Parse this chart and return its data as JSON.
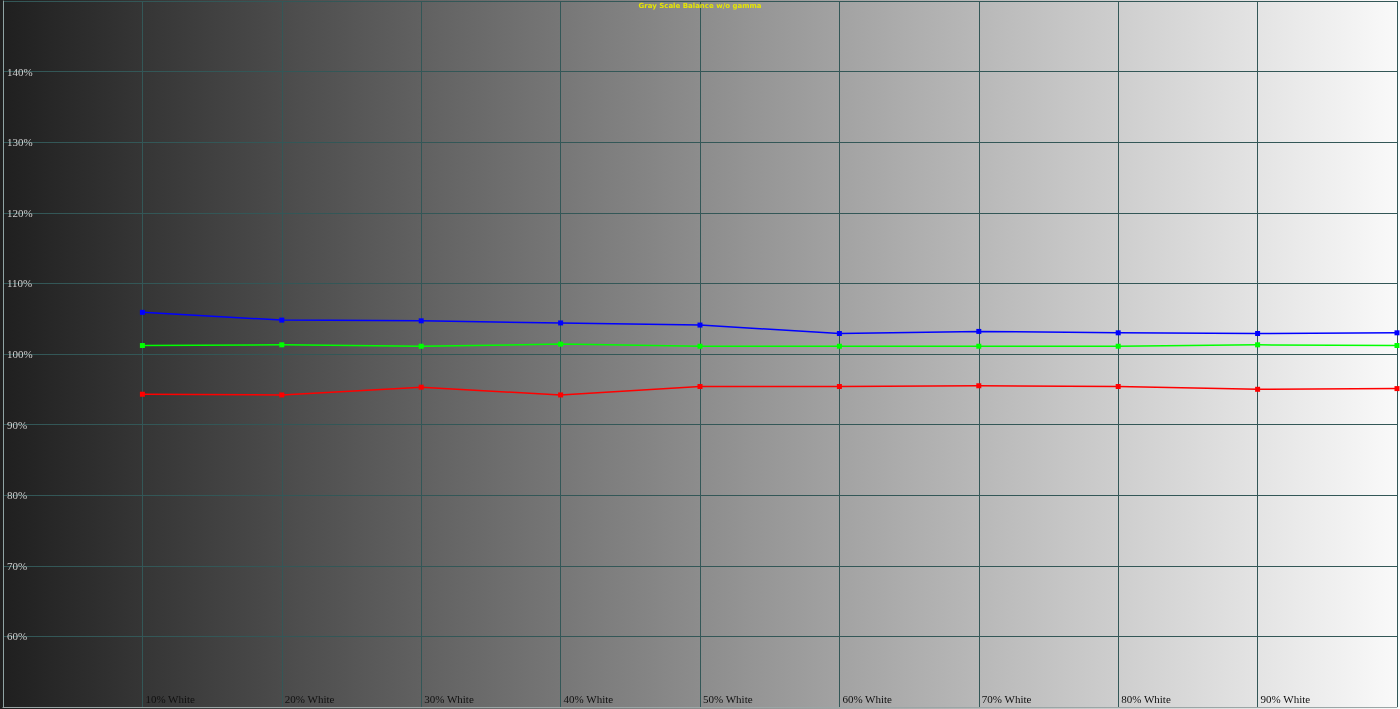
{
  "chart_data": {
    "type": "line",
    "title": "Gray Scale Balance w/o gamma",
    "categories": [
      "10% White",
      "20% White",
      "30% White",
      "40% White",
      "50% White",
      "60% White",
      "70% White",
      "80% White",
      "90% White",
      null
    ],
    "series": [
      {
        "color": "#0000ff",
        "values": [
          105.9,
          104.8,
          104.7,
          104.4,
          104.1,
          102.9,
          103.2,
          103.0,
          102.9,
          103.0
        ]
      },
      {
        "color": "#00ff00",
        "values": [
          101.2,
          101.3,
          101.1,
          101.4,
          101.1,
          101.1,
          101.1,
          101.1,
          101.3,
          101.2
        ]
      },
      {
        "color": "#ff0000",
        "values": [
          94.3,
          94.2,
          95.3,
          94.2,
          95.4,
          95.4,
          95.5,
          95.4,
          95.0,
          95.1
        ]
      }
    ],
    "ylim": [
      50,
      150
    ],
    "yticks": [
      {
        "value": 60,
        "label": "60%"
      },
      {
        "value": 70,
        "label": "70%"
      },
      {
        "value": 80,
        "label": "80%"
      },
      {
        "value": 90,
        "label": "90%"
      },
      {
        "value": 100,
        "label": "100%"
      },
      {
        "value": 110,
        "label": "110%"
      },
      {
        "value": 120,
        "label": "120%"
      },
      {
        "value": 130,
        "label": "130%"
      },
      {
        "value": 140,
        "label": "140%"
      }
    ],
    "grid": true,
    "marker": "square",
    "line_style": "solid"
  }
}
